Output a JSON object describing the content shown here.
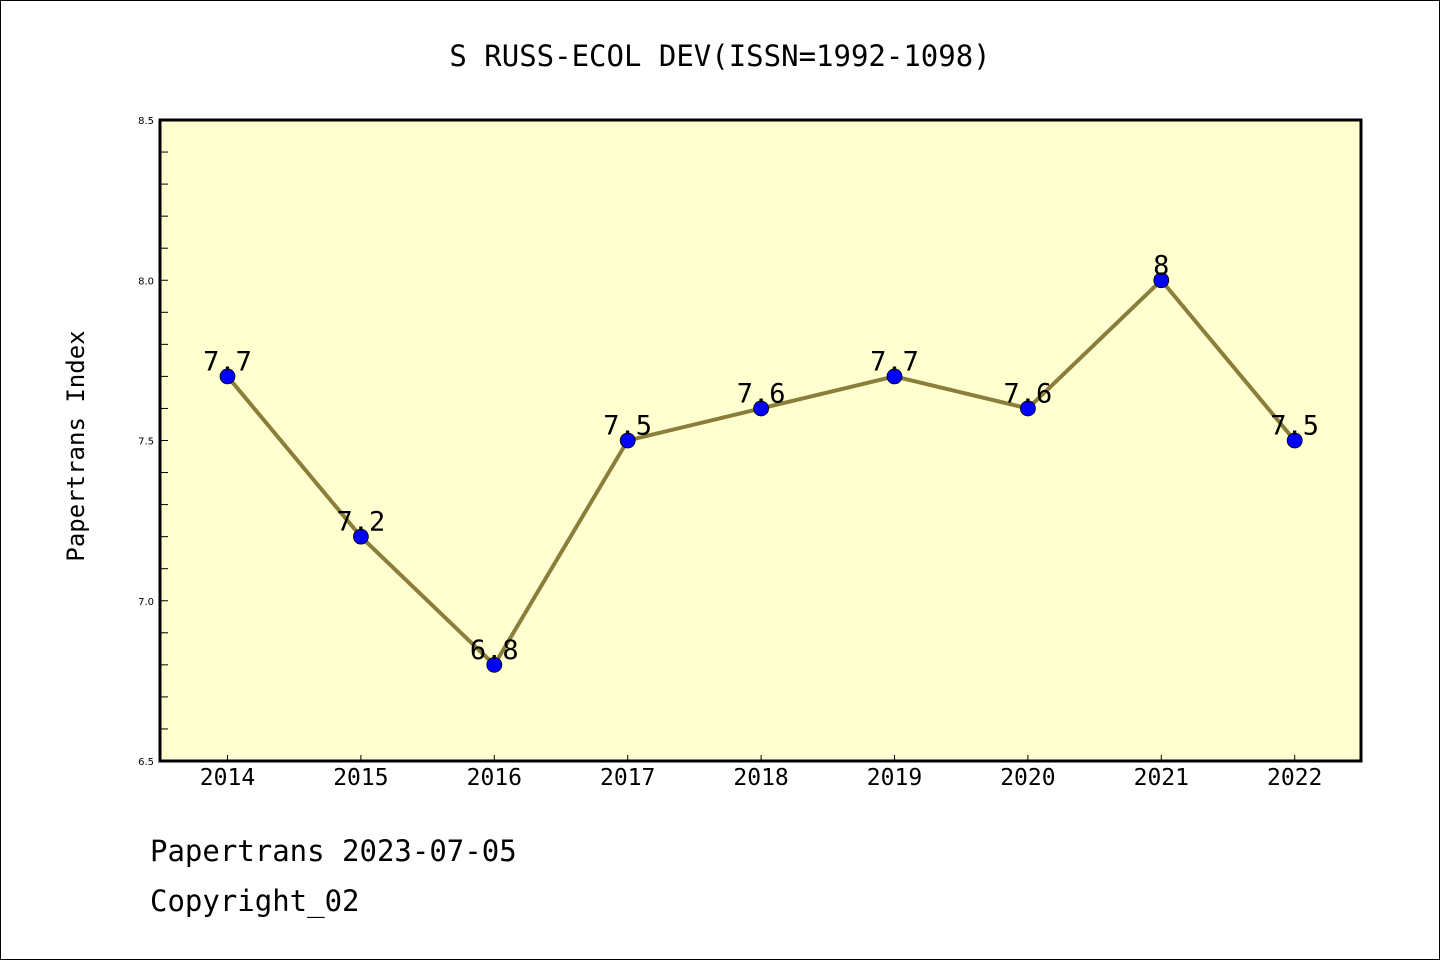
{
  "chart_data": {
    "type": "line",
    "title": "S RUSS-ECOL DEV(ISSN=1992-1098)",
    "ylabel": "Papertrans Index",
    "xlabel": "",
    "categories": [
      "2014",
      "2015",
      "2016",
      "2017",
      "2018",
      "2019",
      "2020",
      "2021",
      "2022"
    ],
    "values": [
      7.7,
      7.2,
      6.8,
      7.5,
      7.6,
      7.7,
      7.6,
      8.0,
      7.5
    ],
    "data_labels": [
      "7.7",
      "7.2",
      "6.8",
      "7.5",
      "7.6",
      "7.7",
      "7.6",
      "8",
      "7.5"
    ],
    "ylim": [
      6.5,
      8.5
    ],
    "yticks": [
      6.5,
      7.0,
      7.5,
      8.0,
      8.5
    ],
    "ytick_labels": [
      "6.5",
      "7.0",
      "7.5",
      "8.0",
      "8.5"
    ],
    "grid": false,
    "colors": {
      "plot_background": "#ffffd0",
      "line": "#8b7d3a",
      "marker": "#0000ff"
    }
  },
  "footer": {
    "line1": "Papertrans 2023-07-05",
    "line2": "Copyright_02"
  }
}
